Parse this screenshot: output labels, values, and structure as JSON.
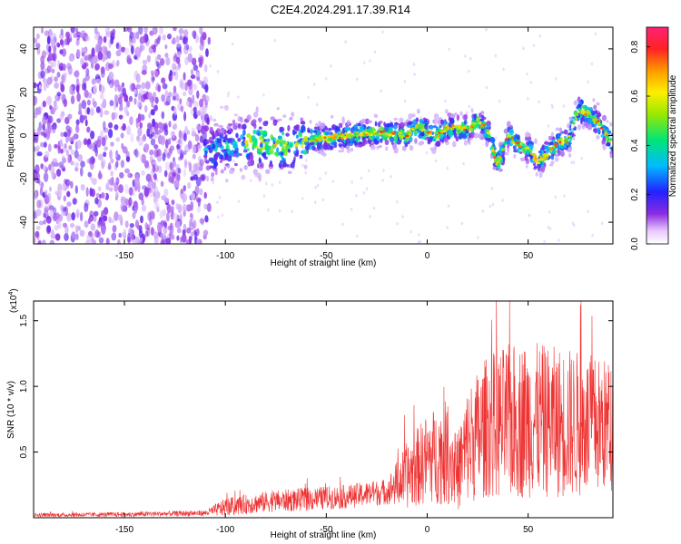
{
  "title": "C2E4.2024.291.17.39.R14",
  "chart_data": [
    {
      "type": "heatmap",
      "xlabel": "Height of straight line (km)",
      "ylabel": "Frequency (Hz)",
      "xlim": [
        -195,
        92
      ],
      "ylim": [
        -50,
        50
      ],
      "x_ticks": [
        -150,
        -100,
        -50,
        0,
        50
      ],
      "y_ticks": [
        -40,
        -20,
        0,
        20,
        40
      ],
      "colorbar": {
        "label": "Normalized spectral amplitude",
        "range": [
          0.0,
          0.88
        ],
        "ticks": [
          0.0,
          0.2,
          0.4,
          0.6,
          0.8
        ]
      },
      "ridge": {
        "x": [
          -108,
          -100,
          -90,
          -80,
          -70,
          -60,
          -50,
          -40,
          -30,
          -20,
          -10,
          -5,
          0,
          5,
          10,
          20,
          25,
          30,
          35,
          40,
          45,
          50,
          55,
          60,
          65,
          70,
          75,
          80,
          85,
          92
        ],
        "y": [
          -8,
          -5,
          -3,
          -4,
          -5,
          -2,
          -1,
          0,
          1,
          1,
          0,
          4,
          2,
          0,
          4,
          3,
          7,
          2,
          -14,
          0,
          -4,
          -6,
          -12,
          -8,
          -3,
          -2,
          12,
          10,
          6,
          -4
        ]
      },
      "grid": false
    },
    {
      "type": "line",
      "xlabel": "Height of straight line (km)",
      "ylabel": "SNR (10 * v/v)",
      "exponent_label": "(x10",
      "exponent_sup": "4",
      "exponent_close": ")",
      "xlim": [
        -195,
        92
      ],
      "ylim": [
        0,
        16500
      ],
      "x_ticks": [
        -150,
        -100,
        -50,
        0,
        50
      ],
      "y_ticks": [
        0.5,
        1.0,
        1.5
      ],
      "y_tick_labels": [
        "0.5",
        "1.0",
        "1.5"
      ],
      "envelope": {
        "x": [
          -195,
          -150,
          -110,
          -100,
          -80,
          -60,
          -40,
          -20,
          -10,
          0,
          10,
          15,
          20,
          30,
          40,
          50,
          60,
          70,
          80,
          92
        ],
        "mean": [
          200,
          250,
          350,
          800,
          1200,
          1400,
          1600,
          2000,
          3200,
          4500,
          5000,
          3500,
          5500,
          7000,
          7200,
          7500,
          7300,
          7200,
          7000,
          7000
        ],
        "spread": [
          150,
          180,
          220,
          700,
          800,
          900,
          900,
          1000,
          2500,
          3500,
          4000,
          3000,
          4500,
          5500,
          6000,
          6000,
          5800,
          5800,
          5500,
          5000
        ]
      },
      "color": "#ee3333",
      "grid": false
    }
  ]
}
